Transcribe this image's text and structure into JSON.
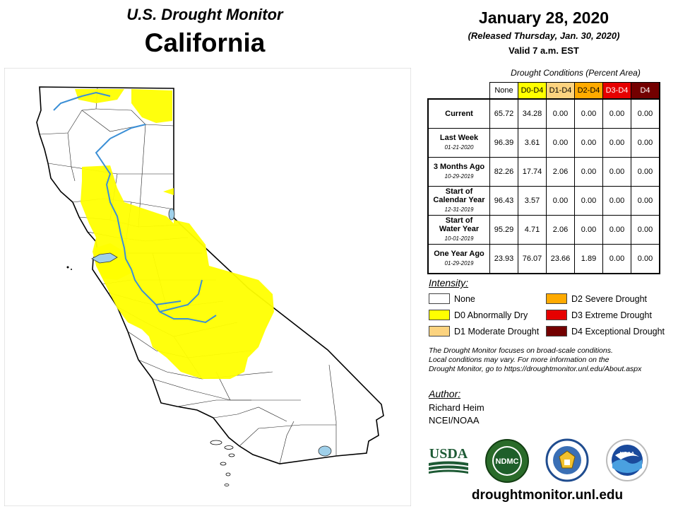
{
  "header": {
    "title": "U.S. Drought Monitor",
    "state": "California",
    "date": "January 28, 2020",
    "released": "(Released Thursday, Jan. 30, 2020)",
    "valid": "Valid 7 a.m. EST"
  },
  "table": {
    "caption": "Drought Conditions (Percent Area)",
    "columns": [
      {
        "label": "None",
        "color": "#ffffff",
        "text_color": "#000000"
      },
      {
        "label": "D0-D4",
        "color": "#ffff00",
        "text_color": "#000000"
      },
      {
        "label": "D1-D4",
        "color": "#fcd37f",
        "text_color": "#000000"
      },
      {
        "label": "D2-D4",
        "color": "#ffaa00",
        "text_color": "#000000"
      },
      {
        "label": "D3-D4",
        "color": "#e60000",
        "text_color": "#ffffff"
      },
      {
        "label": "D4",
        "color": "#730000",
        "text_color": "#ffffff"
      }
    ],
    "rows": [
      {
        "label_line1": "Current",
        "label_line2": "",
        "date": "",
        "values": [
          "65.72",
          "34.28",
          "0.00",
          "0.00",
          "0.00",
          "0.00"
        ]
      },
      {
        "label_line1": "Last Week",
        "label_line2": "",
        "date": "01-21-2020",
        "values": [
          "96.39",
          "3.61",
          "0.00",
          "0.00",
          "0.00",
          "0.00"
        ]
      },
      {
        "label_line1": "3 Months Ago",
        "label_line2": "",
        "date": "10-29-2019",
        "values": [
          "82.26",
          "17.74",
          "2.06",
          "0.00",
          "0.00",
          "0.00"
        ]
      },
      {
        "label_line1": "Start of",
        "label_line2": "Calendar Year",
        "date": "12-31-2019",
        "values": [
          "96.43",
          "3.57",
          "0.00",
          "0.00",
          "0.00",
          "0.00"
        ]
      },
      {
        "label_line1": "Start of",
        "label_line2": "Water Year",
        "date": "10-01-2019",
        "values": [
          "95.29",
          "4.71",
          "2.06",
          "0.00",
          "0.00",
          "0.00"
        ]
      },
      {
        "label_line1": "One Year Ago",
        "label_line2": "",
        "date": "01-29-2019",
        "values": [
          "23.93",
          "76.07",
          "23.66",
          "1.89",
          "0.00",
          "0.00"
        ]
      }
    ]
  },
  "legend": {
    "title": "Intensity:",
    "items": [
      {
        "label": "None",
        "color": "#ffffff"
      },
      {
        "label": "D0 Abnormally Dry",
        "color": "#ffff00"
      },
      {
        "label": "D1 Moderate Drought",
        "color": "#fcd37f"
      },
      {
        "label": "D2 Severe Drought",
        "color": "#ffaa00"
      },
      {
        "label": "D3 Extreme Drought",
        "color": "#e60000"
      },
      {
        "label": "D4 Exceptional Drought",
        "color": "#730000"
      }
    ]
  },
  "note": {
    "line1": "The Drought Monitor focuses on broad-scale conditions.",
    "line2": "Local conditions may vary. For more information on the",
    "line3": "Drought Monitor, go to https://droughtmonitor.unl.edu/About.aspx"
  },
  "author": {
    "title": "Author:",
    "name": "Richard Heim",
    "org": "NCEI/NOAA"
  },
  "logos": {
    "usda": "USDA",
    "ndmc": "NDMC",
    "noaa": "NOAA"
  },
  "footer": {
    "url": "droughtmonitor.unl.edu"
  },
  "map": {
    "d0_color": "#ffff00",
    "water_color": "#5aa9e6",
    "lake_color": "#9fd0ea"
  }
}
